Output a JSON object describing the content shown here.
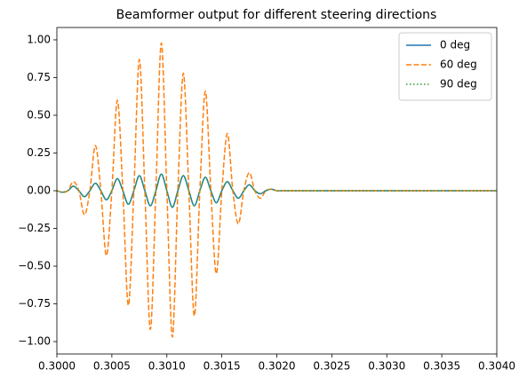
{
  "chart_data": {
    "type": "line",
    "title": "Beamformer output for different steering directions",
    "x": [
      0.3,
      0.30005,
      0.3001,
      0.30015,
      0.3002,
      0.30025,
      0.3003,
      0.30035,
      0.3004,
      0.30045,
      0.3005,
      0.30055,
      0.3006,
      0.30065,
      0.3007,
      0.30075,
      0.3008,
      0.30085,
      0.3009,
      0.30095,
      0.301,
      0.30105,
      0.3011,
      0.30115,
      0.3012,
      0.30125,
      0.3013,
      0.30135,
      0.3014,
      0.30145,
      0.3015,
      0.30155,
      0.3016,
      0.30165,
      0.3017,
      0.30175,
      0.3018,
      0.30185,
      0.3019,
      0.30195,
      0.302,
      0.30205,
      0.3021,
      0.304
    ],
    "series": [
      {
        "name": "0 deg",
        "color": "#1f77b4",
        "style": "solid",
        "values": [
          0,
          -0.01,
          0,
          0.03,
          0,
          -0.04,
          0,
          0.05,
          0,
          -0.06,
          0,
          0.08,
          0,
          -0.09,
          0,
          0.1,
          0,
          -0.1,
          0,
          0.11,
          0,
          -0.11,
          0,
          0.1,
          0,
          -0.1,
          0,
          0.09,
          0,
          -0.08,
          0,
          0.06,
          0,
          -0.05,
          0,
          0.04,
          0,
          -0.02,
          0,
          0.01,
          0,
          0,
          0,
          0
        ]
      },
      {
        "name": "60 deg",
        "color": "#ff7f0e",
        "style": "dashed",
        "values": [
          0,
          -0.01,
          0,
          0.06,
          0,
          -0.16,
          0,
          0.3,
          0,
          -0.43,
          0,
          0.6,
          0,
          -0.76,
          0,
          0.87,
          0,
          -0.92,
          0,
          0.98,
          0,
          -0.97,
          0,
          0.78,
          0,
          -0.83,
          0,
          0.66,
          0,
          -0.55,
          0,
          0.38,
          0,
          -0.22,
          0,
          0.12,
          0,
          -0.05,
          0,
          0.01,
          0,
          0,
          0,
          0
        ]
      },
      {
        "name": "90 deg",
        "color": "#2ca02c",
        "style": "dotted",
        "values": [
          0,
          -0.01,
          0,
          0.03,
          0,
          -0.04,
          0,
          0.05,
          0,
          -0.06,
          0,
          0.08,
          0,
          -0.09,
          0,
          0.1,
          0,
          -0.1,
          0,
          0.11,
          0,
          -0.11,
          0,
          0.1,
          0,
          -0.1,
          0,
          0.09,
          0,
          -0.08,
          0,
          0.06,
          0,
          -0.05,
          0,
          0.04,
          0,
          -0.02,
          0,
          0.01,
          0,
          0,
          0,
          0
        ]
      }
    ],
    "xlim": [
      0.3,
      0.304
    ],
    "xticks": [
      {
        "value": 0.3,
        "label": "0.3000"
      },
      {
        "value": 0.3005,
        "label": "0.3005"
      },
      {
        "value": 0.301,
        "label": "0.3010"
      },
      {
        "value": 0.3015,
        "label": "0.3015"
      },
      {
        "value": 0.302,
        "label": "0.3020"
      },
      {
        "value": 0.3025,
        "label": "0.3025"
      },
      {
        "value": 0.303,
        "label": "0.3030"
      },
      {
        "value": 0.3035,
        "label": "0.3035"
      },
      {
        "value": 0.304,
        "label": "0.3040"
      }
    ],
    "ylim": [
      -1.082,
      1.082
    ],
    "yticks": [
      {
        "value": -1,
        "label": "−1.00"
      },
      {
        "value": -0.75,
        "label": "−0.75"
      },
      {
        "value": -0.5,
        "label": "−0.50"
      },
      {
        "value": -0.25,
        "label": "−0.25"
      },
      {
        "value": 0,
        "label": "0.00"
      },
      {
        "value": 0.25,
        "label": "0.25"
      },
      {
        "value": 0.5,
        "label": "0.50"
      },
      {
        "value": 0.75,
        "label": "0.75"
      },
      {
        "value": 1,
        "label": "1.00"
      }
    ],
    "legend": "upper right"
  }
}
